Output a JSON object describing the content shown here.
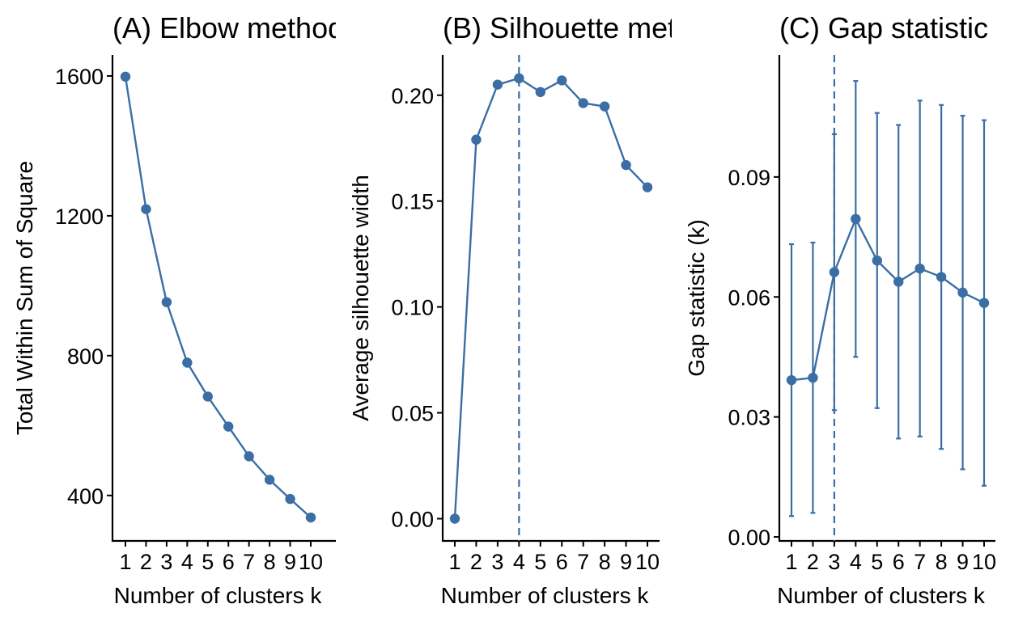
{
  "series_color": "#3A6EA5",
  "chart_data": [
    {
      "type": "line",
      "title": "(A) Elbow method",
      "xlabel": "Number of clusters k",
      "ylabel": "Total Within Sum of Square",
      "x": [
        1,
        2,
        3,
        4,
        5,
        6,
        7,
        8,
        9,
        10
      ],
      "x_tick_labels": [
        "1",
        "2",
        "3",
        "4",
        "5",
        "6",
        "7",
        "8",
        "9",
        "10"
      ],
      "values": [
        1598,
        1219,
        953,
        780,
        683,
        597,
        512,
        445,
        390,
        337
      ],
      "ylim": [
        270,
        1660
      ],
      "y_ticks": [
        400,
        800,
        1200,
        1600
      ],
      "y_tick_labels": [
        "400",
        "800",
        "1200",
        "1600"
      ],
      "vline": null
    },
    {
      "type": "line",
      "title": "(B) Silhouette method",
      "xlabel": "Number of clusters k",
      "ylabel": "Average silhouette width",
      "x": [
        1,
        2,
        3,
        4,
        5,
        6,
        7,
        8,
        9,
        10
      ],
      "x_tick_labels": [
        "1",
        "2",
        "3",
        "4",
        "5",
        "6",
        "7",
        "8",
        "9",
        "10"
      ],
      "values": [
        0.0,
        0.179,
        0.205,
        0.208,
        0.2015,
        0.207,
        0.1963,
        0.1947,
        0.167,
        0.1565
      ],
      "ylim": [
        -0.0105,
        0.219
      ],
      "y_ticks": [
        0.0,
        0.05,
        0.1,
        0.15,
        0.2
      ],
      "y_tick_labels": [
        "0.00",
        "0.05",
        "0.10",
        "0.15",
        "0.20"
      ],
      "vline": 4
    },
    {
      "type": "line",
      "title": "(C) Gap statistic",
      "xlabel": "Number of clusters k",
      "ylabel": "Gap statistic (k)",
      "x": [
        1,
        2,
        3,
        4,
        5,
        6,
        7,
        8,
        9,
        10
      ],
      "x_tick_labels": [
        "1",
        "2",
        "3",
        "4",
        "5",
        "6",
        "7",
        "8",
        "9",
        "10"
      ],
      "values": [
        0.0392,
        0.0398,
        0.0662,
        0.0795,
        0.0691,
        0.0638,
        0.0671,
        0.065,
        0.0611,
        0.0585
      ],
      "errors": [
        0.034,
        0.0338,
        0.0345,
        0.0345,
        0.0369,
        0.0392,
        0.042,
        0.043,
        0.0442,
        0.0457
      ],
      "ylim": [
        -0.001,
        0.1205
      ],
      "y_ticks": [
        0.0,
        0.03,
        0.06,
        0.09
      ],
      "y_tick_labels": [
        "0.00",
        "0.03",
        "0.06",
        "0.09"
      ],
      "vline": 3
    }
  ]
}
